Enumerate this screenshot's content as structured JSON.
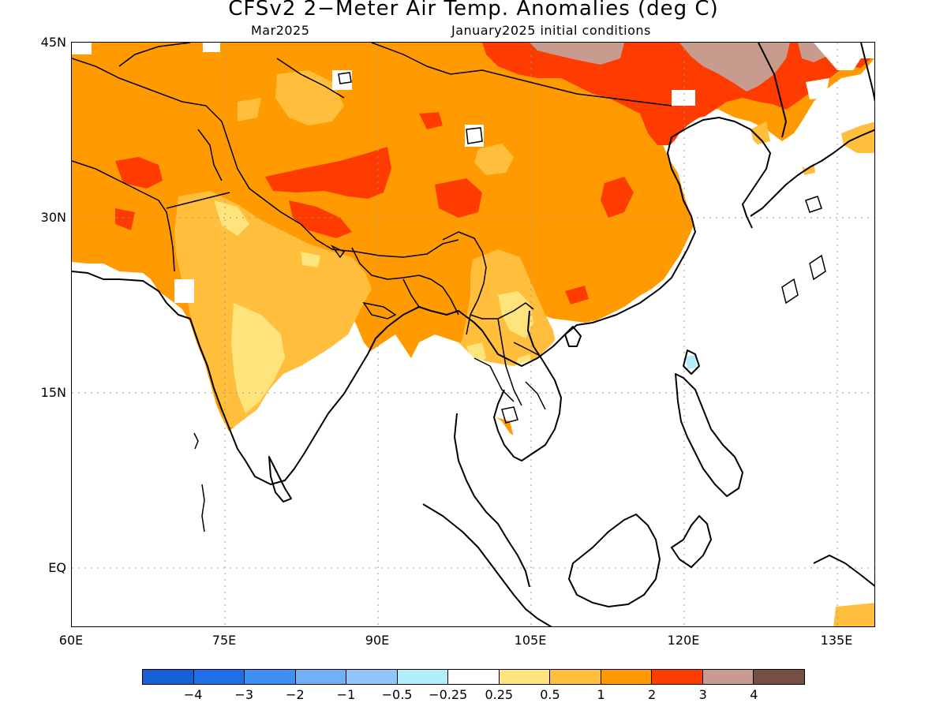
{
  "title": "CFSv2 2−Meter Air Temp. Anomalies (deg C)",
  "valid_month": "Mar2025",
  "init_conditions": "January2025 initial conditions",
  "map": {
    "lat_labels": [
      "45N",
      "30N",
      "15N",
      "EQ"
    ],
    "lon_labels": [
      "60E",
      "75E",
      "90E",
      "105E",
      "120E",
      "135E"
    ]
  },
  "colorbar": {
    "colors": [
      "#1560d4",
      "#1f6fe8",
      "#3e8ff2",
      "#72b0f6",
      "#92c6f8",
      "#b2eefa",
      "#ffffff",
      "#ffe47c",
      "#ffbe3c",
      "#ff9b00",
      "#ff3c00",
      "#c79c8e",
      "#784f43"
    ],
    "labels": [
      "−4",
      "−3",
      "−2",
      "−1",
      "−0.5",
      "−0.25",
      "0.25",
      "0.5",
      "1",
      "2",
      "3",
      "4"
    ]
  }
}
